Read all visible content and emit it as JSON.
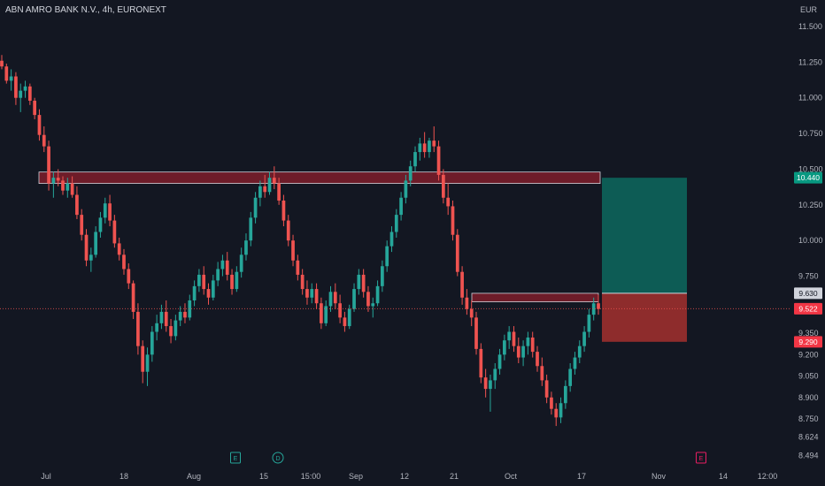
{
  "header": {
    "title": "ABN AMRO BANK N.V., 4h, EURONEXT",
    "currency": "EUR"
  },
  "colors": {
    "background": "#131722",
    "up": "#26a69a",
    "down": "#ef5350",
    "zone_fill": "#7f1d2a",
    "profit": "#0d5c55",
    "loss": "#8e2c2c"
  },
  "chart_data": {
    "type": "candlestick",
    "symbol": "ABN AMRO BANK N.V.",
    "interval": "4h",
    "exchange": "EURONEXT",
    "y_ticks": [
      "11.500",
      "11.250",
      "11.000",
      "10.750",
      "10.500",
      "10.250",
      "10.000",
      "9.750",
      "9.350",
      "9.200",
      "9.050",
      "8.900",
      "8.750",
      "8.624",
      "8.494"
    ],
    "x_ticks": [
      "Jul",
      "18",
      "Aug",
      "15",
      "15:00",
      "Sep",
      "12",
      "21",
      "Oct",
      "17",
      "Nov",
      "14",
      "12:00"
    ],
    "price_badges": [
      {
        "label": "10.440",
        "value": 10.44,
        "color": "#089981"
      },
      {
        "label": "9.630",
        "value": 9.63,
        "color": "#d1d4dc"
      },
      {
        "label": "9.522",
        "value": 9.522,
        "color": "#f23645"
      },
      {
        "label": "9.290",
        "value": 9.29,
        "color": "#f23645"
      }
    ],
    "current_price": 9.522,
    "resistance_zones": [
      {
        "from_date": "Jul",
        "to_date": "Oct 21",
        "low": 10.4,
        "high": 10.48
      },
      {
        "from_date": "Sep 26",
        "to_date": "Oct 21",
        "low": 9.57,
        "high": 9.63
      }
    ],
    "position": {
      "type": "long",
      "entry": 9.63,
      "target": 10.44,
      "stop": 9.29
    },
    "events": [
      {
        "label": "E",
        "near": "Aug 8"
      },
      {
        "label": "D",
        "near": "Aug 17"
      },
      {
        "label": "E",
        "near": "Nov 6"
      }
    ],
    "candles": [
      [
        11.26,
        11.3,
        11.2,
        11.22
      ],
      [
        11.22,
        11.24,
        11.1,
        11.12
      ],
      [
        11.12,
        11.2,
        11.05,
        11.15
      ],
      [
        11.15,
        11.18,
        10.95,
        11.0
      ],
      [
        11.0,
        11.1,
        10.9,
        11.05
      ],
      [
        11.05,
        11.12,
        11.0,
        11.08
      ],
      [
        11.08,
        11.1,
        10.95,
        10.98
      ],
      [
        10.98,
        11.0,
        10.85,
        10.88
      ],
      [
        10.88,
        10.92,
        10.7,
        10.74
      ],
      [
        10.74,
        10.8,
        10.62,
        10.66
      ],
      [
        10.66,
        10.7,
        10.35,
        10.4
      ],
      [
        10.4,
        10.48,
        10.3,
        10.44
      ],
      [
        10.44,
        10.5,
        10.38,
        10.42
      ],
      [
        10.42,
        10.45,
        10.32,
        10.35
      ],
      [
        10.35,
        10.44,
        10.3,
        10.4
      ],
      [
        10.4,
        10.45,
        10.3,
        10.32
      ],
      [
        10.32,
        10.38,
        10.15,
        10.18
      ],
      [
        10.18,
        10.22,
        10.0,
        10.04
      ],
      [
        10.04,
        10.08,
        9.82,
        9.86
      ],
      [
        9.86,
        9.95,
        9.78,
        9.9
      ],
      [
        9.9,
        10.1,
        9.88,
        10.06
      ],
      [
        10.06,
        10.2,
        10.02,
        10.16
      ],
      [
        10.16,
        10.3,
        10.12,
        10.26
      ],
      [
        10.26,
        10.32,
        10.1,
        10.14
      ],
      [
        10.14,
        10.18,
        9.95,
        9.98
      ],
      [
        9.98,
        10.02,
        9.86,
        9.9
      ],
      [
        9.9,
        9.94,
        9.76,
        9.8
      ],
      [
        9.8,
        9.84,
        9.66,
        9.7
      ],
      [
        9.7,
        9.72,
        9.45,
        9.5
      ],
      [
        9.5,
        9.56,
        9.2,
        9.26
      ],
      [
        9.26,
        9.3,
        9.0,
        9.08
      ],
      [
        9.08,
        9.25,
        8.98,
        9.2
      ],
      [
        9.2,
        9.4,
        9.15,
        9.36
      ],
      [
        9.36,
        9.48,
        9.3,
        9.42
      ],
      [
        9.42,
        9.55,
        9.38,
        9.5
      ],
      [
        9.5,
        9.58,
        9.36,
        9.4
      ],
      [
        9.4,
        9.45,
        9.28,
        9.33
      ],
      [
        9.33,
        9.48,
        9.3,
        9.44
      ],
      [
        9.44,
        9.54,
        9.4,
        9.5
      ],
      [
        9.5,
        9.56,
        9.42,
        9.46
      ],
      [
        9.46,
        9.62,
        9.44,
        9.58
      ],
      [
        9.58,
        9.72,
        9.54,
        9.68
      ],
      [
        9.68,
        9.8,
        9.64,
        9.76
      ],
      [
        9.76,
        9.82,
        9.62,
        9.66
      ],
      [
        9.66,
        9.7,
        9.55,
        9.6
      ],
      [
        9.6,
        9.76,
        9.58,
        9.72
      ],
      [
        9.72,
        9.85,
        9.68,
        9.8
      ],
      [
        9.8,
        9.9,
        9.75,
        9.86
      ],
      [
        9.86,
        9.92,
        9.72,
        9.76
      ],
      [
        9.76,
        9.8,
        9.62,
        9.66
      ],
      [
        9.66,
        9.82,
        9.64,
        9.78
      ],
      [
        9.78,
        9.95,
        9.74,
        9.9
      ],
      [
        9.9,
        10.05,
        9.86,
        10.0
      ],
      [
        10.0,
        10.2,
        9.96,
        10.16
      ],
      [
        10.16,
        10.34,
        10.12,
        10.3
      ],
      [
        10.3,
        10.42,
        10.24,
        10.38
      ],
      [
        10.38,
        10.46,
        10.3,
        10.34
      ],
      [
        10.34,
        10.48,
        10.32,
        10.44
      ],
      [
        10.44,
        10.52,
        10.36,
        10.4
      ],
      [
        10.4,
        10.44,
        10.25,
        10.28
      ],
      [
        10.28,
        10.32,
        10.1,
        10.14
      ],
      [
        10.14,
        10.18,
        9.96,
        10.0
      ],
      [
        10.0,
        10.04,
        9.82,
        9.86
      ],
      [
        9.86,
        9.9,
        9.72,
        9.76
      ],
      [
        9.76,
        9.8,
        9.62,
        9.66
      ],
      [
        9.66,
        9.72,
        9.55,
        9.6
      ],
      [
        9.6,
        9.7,
        9.56,
        9.66
      ],
      [
        9.66,
        9.7,
        9.52,
        9.56
      ],
      [
        9.56,
        9.6,
        9.38,
        9.42
      ],
      [
        9.42,
        9.58,
        9.4,
        9.54
      ],
      [
        9.54,
        9.68,
        9.5,
        9.64
      ],
      [
        9.64,
        9.7,
        9.52,
        9.56
      ],
      [
        9.56,
        9.62,
        9.42,
        9.46
      ],
      [
        9.46,
        9.5,
        9.36,
        9.4
      ],
      [
        9.4,
        9.55,
        9.38,
        9.52
      ],
      [
        9.52,
        9.7,
        9.5,
        9.66
      ],
      [
        9.66,
        9.8,
        9.62,
        9.76
      ],
      [
        9.76,
        9.8,
        9.6,
        9.64
      ],
      [
        9.64,
        9.68,
        9.5,
        9.54
      ],
      [
        9.54,
        9.6,
        9.46,
        9.56
      ],
      [
        9.56,
        9.72,
        9.54,
        9.68
      ],
      [
        9.68,
        9.86,
        9.64,
        9.82
      ],
      [
        9.82,
        10.0,
        9.78,
        9.96
      ],
      [
        9.96,
        10.1,
        9.92,
        10.06
      ],
      [
        10.06,
        10.22,
        10.02,
        10.18
      ],
      [
        10.18,
        10.34,
        10.14,
        10.3
      ],
      [
        10.3,
        10.46,
        10.26,
        10.42
      ],
      [
        10.42,
        10.56,
        10.38,
        10.52
      ],
      [
        10.52,
        10.66,
        10.48,
        10.62
      ],
      [
        10.62,
        10.72,
        10.56,
        10.68
      ],
      [
        10.68,
        10.76,
        10.58,
        10.62
      ],
      [
        10.62,
        10.72,
        10.58,
        10.7
      ],
      [
        10.7,
        10.8,
        10.62,
        10.66
      ],
      [
        10.66,
        10.7,
        10.42,
        10.46
      ],
      [
        10.46,
        10.5,
        10.26,
        10.3
      ],
      [
        10.3,
        10.4,
        10.18,
        10.24
      ],
      [
        10.24,
        10.28,
        10.0,
        10.04
      ],
      [
        10.04,
        10.08,
        9.75,
        9.78
      ],
      [
        9.78,
        9.82,
        9.55,
        9.6
      ],
      [
        9.6,
        9.66,
        9.48,
        9.52
      ],
      [
        9.52,
        9.58,
        9.4,
        9.46
      ],
      [
        9.46,
        9.5,
        9.2,
        9.24
      ],
      [
        9.24,
        9.28,
        9.0,
        9.04
      ],
      [
        9.04,
        9.1,
        8.9,
        8.96
      ],
      [
        8.96,
        9.06,
        8.8,
        9.02
      ],
      [
        9.02,
        9.14,
        8.96,
        9.1
      ],
      [
        9.1,
        9.24,
        9.06,
        9.2
      ],
      [
        9.2,
        9.34,
        9.16,
        9.3
      ],
      [
        9.3,
        9.4,
        9.24,
        9.36
      ],
      [
        9.36,
        9.4,
        9.22,
        9.26
      ],
      [
        9.26,
        9.32,
        9.14,
        9.18
      ],
      [
        9.18,
        9.3,
        9.12,
        9.26
      ],
      [
        9.26,
        9.36,
        9.2,
        9.32
      ],
      [
        9.32,
        9.36,
        9.18,
        9.22
      ],
      [
        9.22,
        9.26,
        9.08,
        9.12
      ],
      [
        9.12,
        9.18,
        8.98,
        9.02
      ],
      [
        9.02,
        9.06,
        8.86,
        8.9
      ],
      [
        8.9,
        8.94,
        8.78,
        8.82
      ],
      [
        8.82,
        8.86,
        8.7,
        8.76
      ],
      [
        8.76,
        8.9,
        8.72,
        8.86
      ],
      [
        8.86,
        9.02,
        8.82,
        8.98
      ],
      [
        8.98,
        9.14,
        8.94,
        9.1
      ],
      [
        9.1,
        9.22,
        9.06,
        9.18
      ],
      [
        9.18,
        9.3,
        9.14,
        9.26
      ],
      [
        9.26,
        9.4,
        9.22,
        9.36
      ],
      [
        9.36,
        9.52,
        9.32,
        9.48
      ],
      [
        9.48,
        9.6,
        9.44,
        9.56
      ],
      [
        9.56,
        9.62,
        9.48,
        9.52
      ]
    ]
  }
}
